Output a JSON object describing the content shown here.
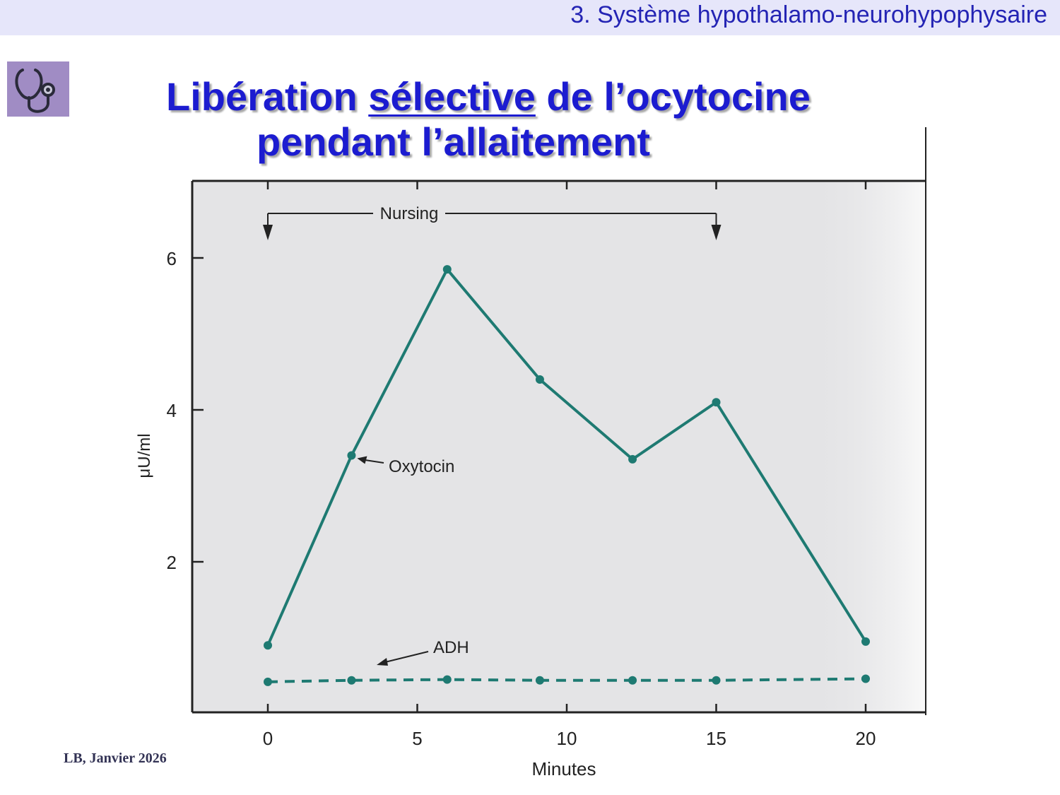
{
  "header": {
    "section_title": "3. Système hypothalamo-neurohypophysaire"
  },
  "icons": {
    "corner": "stethoscope-icon"
  },
  "title": {
    "part1": "Libération ",
    "emphasis": "sélective",
    "part2": " de l’ocytocine",
    "line2": "pendant l’allaitement"
  },
  "colors": {
    "title": "#1c1cd0",
    "header_bg": "#e6e6fa",
    "series": "#1e7a72",
    "icon_bg": "#a08cc4"
  },
  "chart_data": {
    "type": "line",
    "xlabel": "Minutes",
    "ylabel": "μU/ml",
    "xlim": [
      -2.5,
      21
    ],
    "ylim": [
      0,
      6.9
    ],
    "x_ticks": [
      0,
      5,
      10,
      15,
      20
    ],
    "x_tick_labels": [
      "0",
      "5",
      "10",
      "15",
      "20"
    ],
    "y_ticks": [
      2,
      4,
      6
    ],
    "y_tick_labels": [
      "2",
      "4",
      "6"
    ],
    "series": [
      {
        "name": "Oxytocin",
        "style": "solid",
        "x": [
          0,
          2.8,
          6.0,
          9.1,
          12.2,
          15.0,
          20.0
        ],
        "y": [
          0.9,
          3.4,
          5.85,
          4.4,
          3.35,
          4.1,
          0.95
        ]
      },
      {
        "name": "ADH",
        "style": "dashed",
        "x": [
          0,
          2.8,
          6.0,
          9.1,
          12.2,
          15.0,
          20.0
        ],
        "y": [
          0.42,
          0.44,
          0.45,
          0.44,
          0.44,
          0.44,
          0.46
        ]
      }
    ],
    "annotations": [
      {
        "text": "Nursing",
        "type": "interval",
        "from": 0,
        "to": 15
      }
    ],
    "grid": false
  },
  "footer": {
    "credit": "LB, Janvier 2026"
  }
}
